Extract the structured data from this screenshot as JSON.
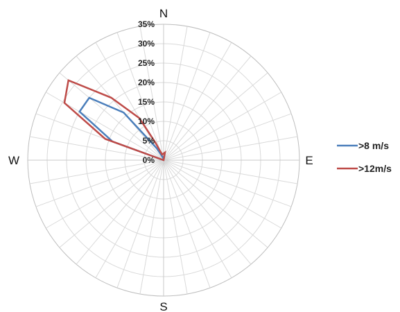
{
  "chart_data": {
    "type": "radar",
    "title": "",
    "directions": [
      "N",
      "E",
      "S",
      "W"
    ],
    "radial_ticks": [
      "0%",
      "5%",
      "10%",
      "15%",
      "20%",
      "25%",
      "30%",
      "35%"
    ],
    "rmax": 35,
    "spokes": 36,
    "grid": true,
    "legend_position": "right",
    "series": [
      {
        "name": ">8 m/s",
        "color": "#4a7ebb",
        "points": [
          {
            "bearing": 10,
            "value": 1.5
          },
          {
            "bearing": 250,
            "value": 0
          },
          {
            "bearing": 270,
            "value": 0
          },
          {
            "bearing": 290,
            "value": 14
          },
          {
            "bearing": 300,
            "value": 25
          },
          {
            "bearing": 310,
            "value": 25
          },
          {
            "bearing": 320,
            "value": 16
          },
          {
            "bearing": 330,
            "value": 3.5
          },
          {
            "bearing": 340,
            "value": 1
          },
          {
            "bearing": 350,
            "value": 0.5
          }
        ]
      },
      {
        "name": ">12m/s",
        "color": "#be4b48",
        "points": [
          {
            "bearing": 10,
            "value": 2
          },
          {
            "bearing": 270,
            "value": 0
          },
          {
            "bearing": 290,
            "value": 16
          },
          {
            "bearing": 300,
            "value": 29.5
          },
          {
            "bearing": 310,
            "value": 32
          },
          {
            "bearing": 320,
            "value": 21
          },
          {
            "bearing": 330,
            "value": 12.5
          },
          {
            "bearing": 335,
            "value": 5
          },
          {
            "bearing": 345,
            "value": 1.5
          }
        ]
      }
    ]
  }
}
